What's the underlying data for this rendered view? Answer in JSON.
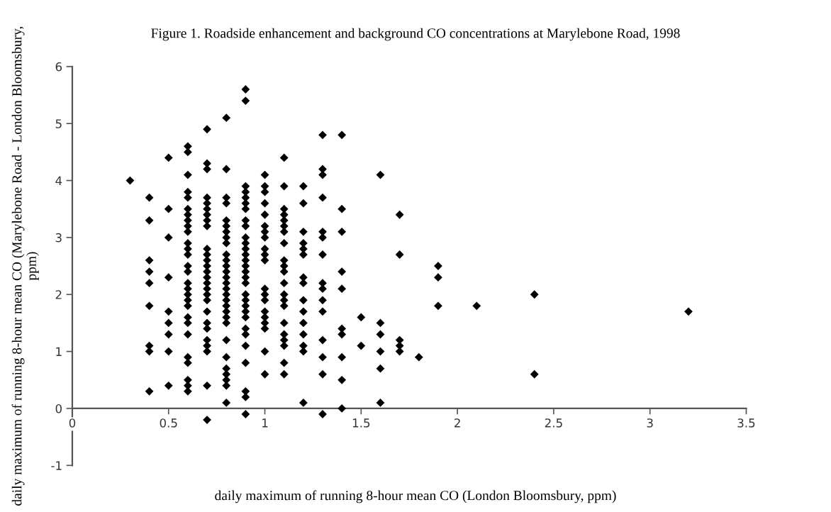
{
  "chart_data": {
    "type": "scatter",
    "title": "Figure 1. Roadside enhancement and background CO concentrations at Marylebone Road, 1998",
    "xlabel": "daily maximum of running 8-hour mean CO (London Bloomsbury, ppm)",
    "ylabel": "daily maximum of running 8-hour mean CO (Marylebone Road - London Bloomsbury, ppm)",
    "xlim": [
      0,
      3.5
    ],
    "xticks": [
      0,
      0.5,
      1,
      1.5,
      2,
      2.5,
      3,
      3.5
    ],
    "ylim": [
      -1,
      6
    ],
    "yticks": [
      -1,
      0,
      1,
      2,
      3,
      4,
      5,
      6
    ],
    "grid": false,
    "marker": "diamond",
    "series": [
      {
        "color": "#000000",
        "x": [
          0.3,
          0.4,
          0.4,
          0.4,
          0.4,
          0.4,
          0.4,
          0.4,
          0.4,
          0.4,
          0.5,
          0.5,
          0.5,
          0.5,
          0.5,
          0.5,
          0.5,
          0.5,
          0.5,
          0.6,
          0.6,
          0.6,
          0.6,
          0.6,
          0.6,
          0.6,
          0.6,
          0.6,
          0.6,
          0.6,
          0.6,
          0.6,
          0.6,
          0.6,
          0.6,
          0.6,
          0.6,
          0.6,
          0.6,
          0.6,
          0.6,
          0.6,
          0.6,
          0.6,
          0.6,
          0.6,
          0.6,
          0.7,
          0.7,
          0.7,
          0.7,
          0.7,
          0.7,
          0.7,
          0.7,
          0.7,
          0.7,
          0.7,
          0.7,
          0.7,
          0.7,
          0.7,
          0.7,
          0.7,
          0.7,
          0.7,
          0.7,
          0.7,
          0.7,
          0.7,
          0.7,
          0.7,
          0.7,
          0.7,
          0.8,
          0.8,
          0.8,
          0.8,
          0.8,
          0.8,
          0.8,
          0.8,
          0.8,
          0.8,
          0.8,
          0.8,
          0.8,
          0.8,
          0.8,
          0.8,
          0.8,
          0.8,
          0.8,
          0.8,
          0.8,
          0.8,
          0.8,
          0.8,
          0.8,
          0.8,
          0.8,
          0.8,
          0.8,
          0.9,
          0.9,
          0.9,
          0.9,
          0.9,
          0.9,
          0.9,
          0.9,
          0.9,
          0.9,
          0.9,
          0.9,
          0.9,
          0.9,
          0.9,
          0.9,
          0.9,
          0.9,
          0.9,
          0.9,
          0.9,
          0.9,
          0.9,
          0.9,
          0.9,
          0.9,
          0.9,
          0.9,
          0.9,
          0.9,
          1.0,
          1.0,
          1.0,
          1.0,
          1.0,
          1.0,
          1.0,
          1.0,
          1.0,
          1.0,
          1.0,
          1.0,
          1.0,
          1.0,
          1.0,
          1.0,
          1.0,
          1.0,
          1.0,
          1.0,
          1.1,
          1.1,
          1.1,
          1.1,
          1.1,
          1.1,
          1.1,
          1.1,
          1.1,
          1.1,
          1.1,
          1.1,
          1.1,
          1.1,
          1.1,
          1.1,
          1.1,
          1.1,
          1.1,
          1.1,
          1.1,
          1.2,
          1.2,
          1.2,
          1.2,
          1.2,
          1.2,
          1.2,
          1.2,
          1.2,
          1.2,
          1.2,
          1.2,
          1.2,
          1.2,
          1.2,
          1.3,
          1.3,
          1.3,
          1.3,
          1.3,
          1.3,
          1.3,
          1.3,
          1.3,
          1.3,
          1.3,
          1.3,
          1.3,
          1.3,
          1.3,
          1.4,
          1.4,
          1.4,
          1.4,
          1.4,
          1.4,
          1.4,
          1.4,
          1.4,
          1.4,
          1.5,
          1.5,
          1.6,
          1.6,
          1.6,
          1.6,
          1.6,
          1.6,
          1.7,
          1.7,
          1.7,
          1.7,
          1.7,
          1.8,
          1.9,
          1.9,
          1.9,
          2.1,
          2.4,
          2.4,
          3.2
        ],
        "values": [
          4.0,
          3.7,
          3.3,
          2.6,
          2.4,
          2.2,
          1.8,
          1.1,
          1.0,
          0.3,
          4.4,
          3.5,
          3.0,
          2.3,
          1.7,
          1.5,
          1.3,
          1.0,
          0.4,
          4.6,
          4.5,
          4.1,
          3.8,
          3.7,
          3.5,
          3.4,
          3.3,
          3.2,
          3.1,
          2.9,
          2.8,
          2.7,
          2.5,
          2.4,
          2.2,
          2.1,
          2.0,
          1.9,
          1.8,
          1.6,
          1.5,
          1.3,
          0.9,
          0.8,
          0.5,
          0.4,
          0.3,
          4.9,
          4.3,
          4.2,
          3.7,
          3.6,
          3.5,
          3.4,
          3.3,
          3.2,
          2.8,
          2.7,
          2.6,
          2.5,
          2.4,
          2.3,
          2.2,
          2.1,
          2.0,
          1.9,
          1.7,
          1.5,
          1.4,
          1.2,
          1.1,
          1.0,
          0.4,
          -0.2,
          5.1,
          4.2,
          3.7,
          3.6,
          3.3,
          3.2,
          3.1,
          3.0,
          2.9,
          2.7,
          2.6,
          2.5,
          2.4,
          2.3,
          2.2,
          2.1,
          2.0,
          1.9,
          1.8,
          1.7,
          1.6,
          1.5,
          1.2,
          0.9,
          0.7,
          0.6,
          0.5,
          0.4,
          0.1,
          5.6,
          5.4,
          3.9,
          3.8,
          3.7,
          3.6,
          3.5,
          3.3,
          3.2,
          3.0,
          2.9,
          2.8,
          2.7,
          2.6,
          2.5,
          2.4,
          2.3,
          2.2,
          2.0,
          1.9,
          1.8,
          1.7,
          1.6,
          1.4,
          1.3,
          1.1,
          0.8,
          0.3,
          0.2,
          -0.1,
          4.1,
          3.9,
          3.8,
          3.6,
          3.4,
          3.2,
          3.1,
          3.0,
          2.8,
          2.7,
          2.6,
          2.1,
          2.0,
          1.9,
          1.7,
          1.6,
          1.5,
          1.4,
          1.0,
          0.6,
          4.4,
          3.9,
          3.5,
          3.4,
          3.3,
          3.2,
          3.1,
          2.9,
          2.6,
          2.5,
          2.4,
          2.2,
          2.0,
          1.9,
          1.8,
          1.5,
          1.3,
          1.2,
          1.1,
          0.8,
          0.6,
          3.9,
          3.6,
          3.1,
          2.9,
          2.8,
          2.7,
          2.3,
          2.2,
          1.9,
          1.7,
          1.5,
          1.3,
          1.1,
          1.0,
          0.1,
          4.8,
          4.2,
          4.1,
          3.7,
          3.1,
          3.0,
          2.7,
          2.2,
          2.1,
          1.9,
          1.7,
          1.2,
          0.9,
          0.6,
          -0.1,
          4.8,
          3.5,
          3.1,
          2.4,
          2.1,
          1.4,
          1.3,
          0.9,
          0.5,
          0.0,
          1.6,
          1.1,
          4.1,
          1.5,
          1.3,
          1.0,
          0.7,
          0.1,
          3.4,
          2.7,
          1.2,
          1.1,
          1.0,
          0.9,
          2.5,
          2.3,
          1.8,
          1.8,
          2.0,
          0.6,
          1.7
        ]
      }
    ]
  }
}
